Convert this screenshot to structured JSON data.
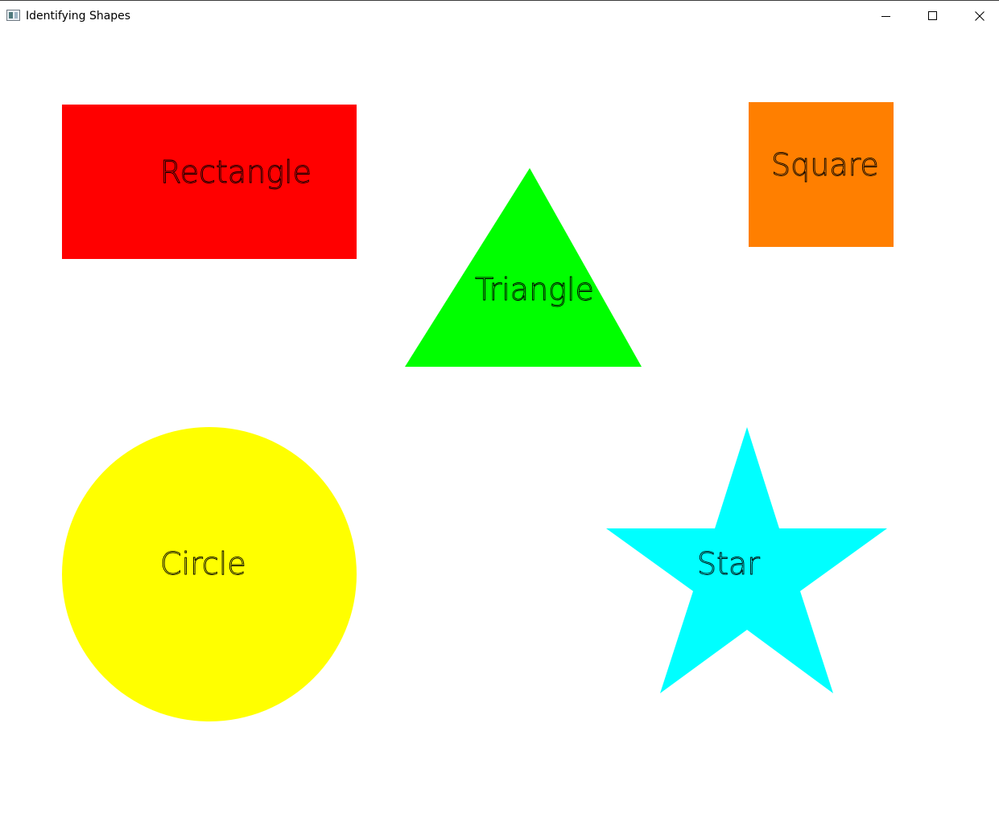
{
  "window": {
    "title": "Identifying Shapes",
    "icon": "app-window-icon",
    "controls": {
      "minimize": "minimize-icon",
      "maximize": "maximize-icon",
      "close": "close-icon"
    }
  },
  "shapes": {
    "rectangle": {
      "label": "Rectangle",
      "color": "#ff0000"
    },
    "triangle": {
      "label": "Triangle",
      "color": "#00ff00"
    },
    "square": {
      "label": "Square",
      "color": "#ff7f00"
    },
    "circle": {
      "label": "Circle",
      "color": "#ffff00"
    },
    "star": {
      "label": "Star",
      "color": "#00ffff"
    }
  }
}
